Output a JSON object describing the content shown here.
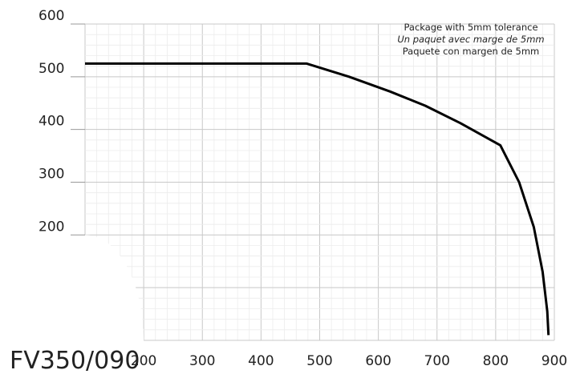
{
  "chart_data": {
    "type": "line",
    "model_label": "FV350/090",
    "notes": [
      "Package with 5mm tolerance",
      "Un paquet avec marge de 5mm",
      "Paquete con margen de 5mm"
    ],
    "x_ticks": [
      "200",
      "300",
      "400",
      "500",
      "600",
      "700",
      "800",
      "900"
    ],
    "y_ticks": [
      "600",
      "500",
      "400",
      "300",
      "200"
    ],
    "xlim": [
      100,
      900
    ],
    "ylim": [
      0,
      600
    ],
    "grid": true,
    "series": [
      {
        "points": [
          {
            "x": 100,
            "y": 525
          },
          {
            "x": 478,
            "y": 525
          },
          {
            "x": 550,
            "y": 500
          },
          {
            "x": 620,
            "y": 472
          },
          {
            "x": 680,
            "y": 445
          },
          {
            "x": 740,
            "y": 412
          },
          {
            "x": 808,
            "y": 370
          },
          {
            "x": 840,
            "y": 300
          },
          {
            "x": 865,
            "y": 215
          },
          {
            "x": 880,
            "y": 130
          },
          {
            "x": 888,
            "y": 55
          },
          {
            "x": 890,
            "y": 10
          }
        ]
      }
    ]
  }
}
